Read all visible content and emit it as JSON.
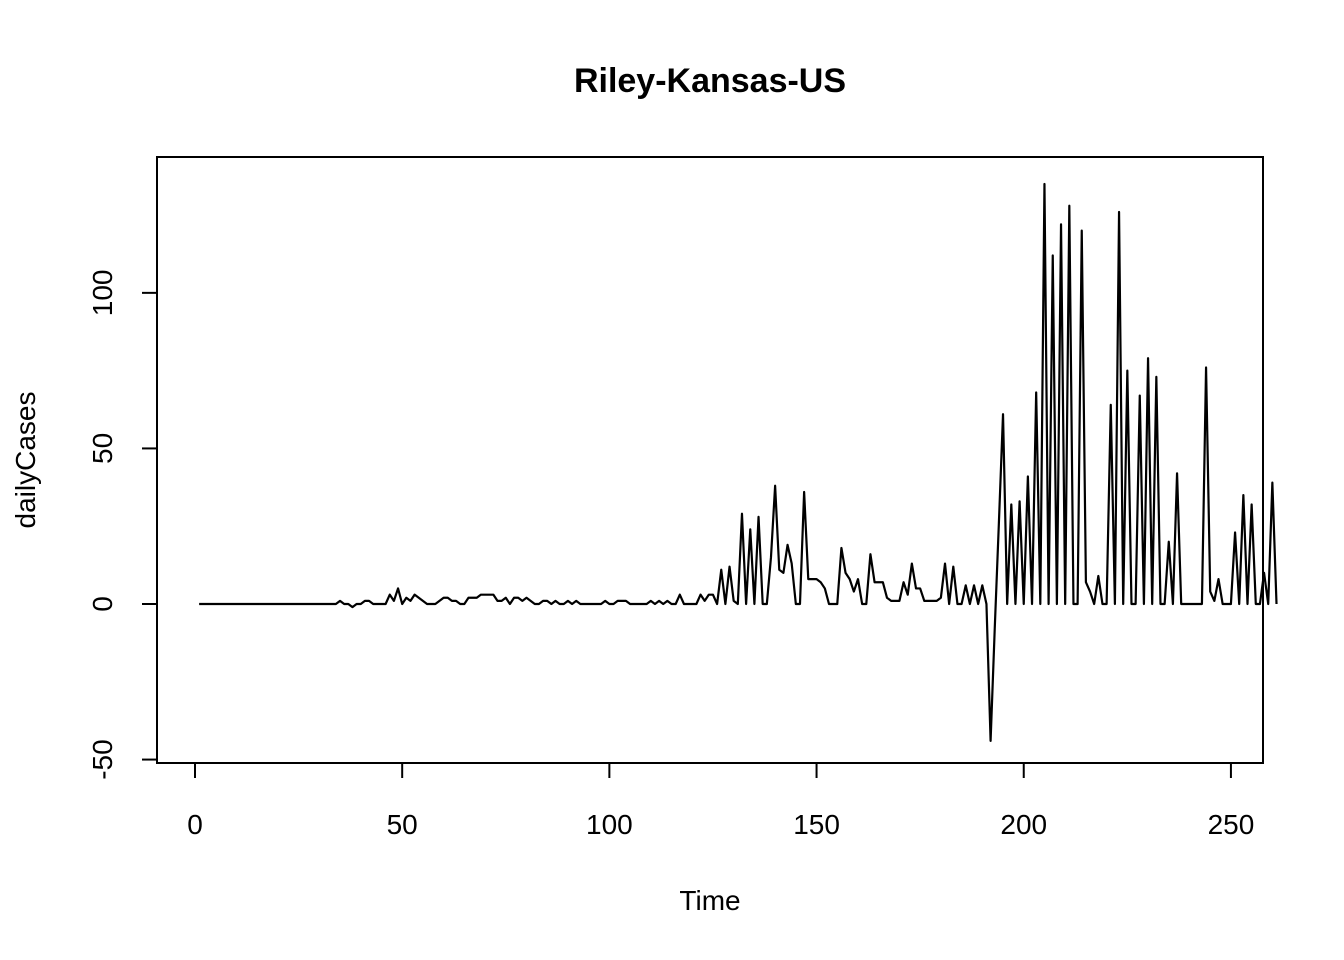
{
  "chart_data": {
    "type": "line",
    "title": "Riley-Kansas-US",
    "xlabel": "Time",
    "ylabel": "dailyCases",
    "xlim": [
      1,
      248
    ],
    "ylim": [
      -45,
      136
    ],
    "x_ticks": [
      0,
      50,
      100,
      150,
      200,
      250
    ],
    "y_ticks": [
      -50,
      0,
      50,
      100
    ],
    "grid": false,
    "legend": "none",
    "series": [
      {
        "values": [
          0,
          0,
          0,
          0,
          0,
          0,
          0,
          0,
          0,
          0,
          0,
          0,
          0,
          0,
          0,
          0,
          0,
          0,
          0,
          0,
          0,
          0,
          0,
          0,
          0,
          0,
          0,
          0,
          0,
          0,
          0,
          0,
          0,
          0,
          1,
          0,
          0,
          -1,
          0,
          0,
          1,
          1,
          0,
          0,
          0,
          0,
          3,
          1,
          5,
          0,
          2,
          1,
          3,
          2,
          1,
          0,
          0,
          0,
          1,
          2,
          2,
          1,
          1,
          0,
          0,
          2,
          2,
          2,
          3,
          3,
          3,
          3,
          1,
          1,
          2,
          0,
          2,
          2,
          1,
          2,
          1,
          0,
          0,
          1,
          1,
          0,
          1,
          0,
          0,
          1,
          0,
          1,
          0,
          0,
          0,
          0,
          0,
          0,
          1,
          0,
          0,
          1,
          1,
          1,
          0,
          0,
          0,
          0,
          0,
          1,
          0,
          1,
          0,
          1,
          0,
          0,
          3,
          0,
          0,
          0,
          0,
          3,
          1,
          3,
          3,
          0,
          11,
          0,
          12,
          1,
          0,
          29,
          0,
          24,
          0,
          28,
          0,
          0,
          15,
          38,
          11,
          10,
          19,
          13,
          0,
          0,
          36,
          8,
          8,
          8,
          7,
          5,
          0,
          0,
          0,
          18,
          10,
          8,
          4,
          8,
          0,
          0,
          16,
          7,
          7,
          7,
          2,
          1,
          1,
          1,
          7,
          3,
          13,
          5,
          5,
          1,
          1,
          1,
          1,
          2,
          13,
          0,
          12,
          0,
          0,
          6,
          0,
          6,
          0,
          6,
          0,
          -44,
          -8,
          26,
          61,
          0,
          32,
          0,
          33,
          0,
          41,
          0,
          68,
          0,
          135,
          0,
          112,
          0,
          122,
          0,
          128,
          0,
          0,
          120,
          7,
          4,
          0,
          9,
          0,
          0,
          64,
          0,
          126,
          0,
          75,
          0,
          0,
          67,
          0,
          79,
          0,
          73,
          0,
          0,
          20,
          0,
          42,
          0,
          0,
          0,
          0,
          0,
          0,
          76,
          4,
          1,
          8,
          0,
          0,
          0,
          23,
          0,
          35,
          0,
          32,
          0,
          0,
          10,
          0,
          39,
          0
        ]
      }
    ]
  }
}
